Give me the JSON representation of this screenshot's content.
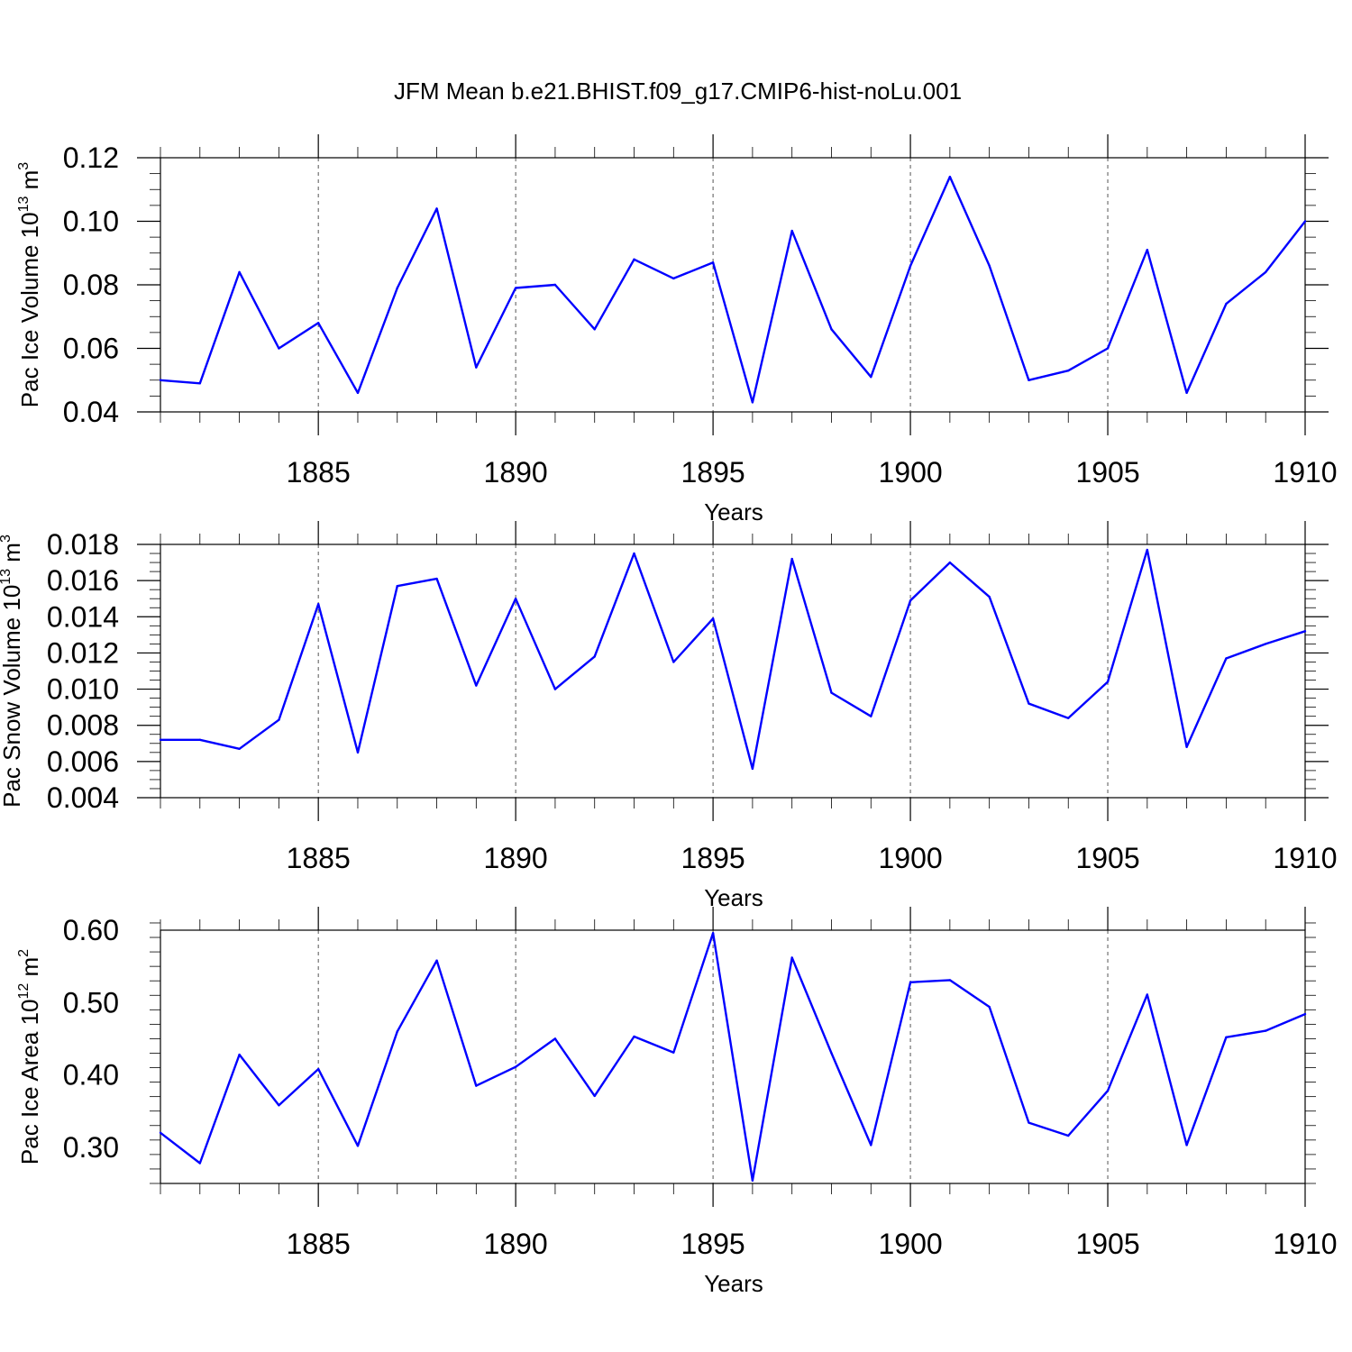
{
  "title": "JFM Mean b.e21.BHIST.f09_g17.CMIP6-hist-noLu.001",
  "colors": {
    "line": "#0000ff",
    "axis": "#000000",
    "grid": "#555555",
    "background": "#ffffff"
  },
  "chart_data": [
    {
      "type": "line",
      "title": "JFM Mean b.e21.BHIST.f09_g17.CMIP6-hist-noLu.001",
      "xlabel": "Years",
      "ylabel": {
        "text": "Pac Ice Volume 10",
        "exponent": "13",
        "unit": " m",
        "unit_exponent": "3"
      },
      "xlim": [
        1881,
        1910
      ],
      "ylim": [
        0.04,
        0.12
      ],
      "x_major_ticks": [
        1885,
        1890,
        1895,
        1900,
        1905,
        1910
      ],
      "y_major_ticks": [
        0.04,
        0.06,
        0.08,
        0.1,
        0.12
      ],
      "y_tick_labels": [
        "0.04",
        "0.06",
        "0.08",
        "0.10",
        "0.12"
      ],
      "y_minor_step": 0.005,
      "grid": "vertical-dashed",
      "series": [
        {
          "name": "Pac Ice Volume",
          "x": [
            1881,
            1882,
            1883,
            1884,
            1885,
            1886,
            1887,
            1888,
            1889,
            1890,
            1891,
            1892,
            1893,
            1894,
            1895,
            1896,
            1897,
            1898,
            1899,
            1900,
            1901,
            1902,
            1903,
            1904,
            1905,
            1906,
            1907,
            1908,
            1909,
            1910
          ],
          "values": [
            0.05,
            0.049,
            0.084,
            0.06,
            0.068,
            0.046,
            0.079,
            0.104,
            0.054,
            0.079,
            0.08,
            0.066,
            0.088,
            0.082,
            0.087,
            0.043,
            0.097,
            0.066,
            0.051,
            0.086,
            0.114,
            0.086,
            0.05,
            0.053,
            0.06,
            0.091,
            0.046,
            0.074,
            0.084,
            0.1
          ]
        }
      ]
    },
    {
      "type": "line",
      "xlabel": "Years",
      "ylabel": {
        "text": "Pac Snow Volume 10",
        "exponent": "13",
        "unit": " m",
        "unit_exponent": "3"
      },
      "xlim": [
        1881,
        1910
      ],
      "ylim": [
        0.004,
        0.018
      ],
      "x_major_ticks": [
        1885,
        1890,
        1895,
        1900,
        1905,
        1910
      ],
      "y_major_ticks": [
        0.004,
        0.006,
        0.008,
        0.01,
        0.012,
        0.014,
        0.016,
        0.018
      ],
      "y_tick_labels": [
        "0.004",
        "0.006",
        "0.008",
        "0.010",
        "0.012",
        "0.014",
        "0.016",
        "0.018"
      ],
      "y_minor_step": 0.0005,
      "grid": "vertical-dashed",
      "series": [
        {
          "name": "Pac Snow Volume",
          "x": [
            1881,
            1882,
            1883,
            1884,
            1885,
            1886,
            1887,
            1888,
            1889,
            1890,
            1891,
            1892,
            1893,
            1894,
            1895,
            1896,
            1897,
            1898,
            1899,
            1900,
            1901,
            1902,
            1903,
            1904,
            1905,
            1906,
            1907,
            1908,
            1909,
            1910
          ],
          "values": [
            0.0072,
            0.0072,
            0.0067,
            0.0083,
            0.0147,
            0.0065,
            0.0157,
            0.0161,
            0.0102,
            0.015,
            0.01,
            0.0118,
            0.0175,
            0.0115,
            0.0139,
            0.0056,
            0.0172,
            0.0098,
            0.0085,
            0.0149,
            0.017,
            0.0151,
            0.0092,
            0.0084,
            0.0104,
            0.0177,
            0.0068,
            0.0117,
            0.0125,
            0.0132
          ]
        }
      ]
    },
    {
      "type": "line",
      "xlabel": "Years",
      "ylabel": {
        "text": "Pac Ice Area 10",
        "exponent": "12",
        "unit": " m",
        "unit_exponent": "2"
      },
      "xlim": [
        1881,
        1910
      ],
      "ylim": [
        0.25,
        0.6
      ],
      "x_major_ticks": [
        1885,
        1890,
        1895,
        1900,
        1905,
        1910
      ],
      "y_major_ticks": [
        0.3,
        0.4,
        0.5,
        0.6
      ],
      "y_tick_labels": [
        "0.30",
        "0.40",
        "0.50",
        "0.60"
      ],
      "y_minor_step": 0.02,
      "grid": "vertical-dashed",
      "series": [
        {
          "name": "Pac Ice Area",
          "x": [
            1881,
            1882,
            1883,
            1884,
            1885,
            1886,
            1887,
            1888,
            1889,
            1890,
            1891,
            1892,
            1893,
            1894,
            1895,
            1896,
            1897,
            1898,
            1899,
            1900,
            1901,
            1902,
            1903,
            1904,
            1905,
            1906,
            1907,
            1908,
            1909,
            1910
          ],
          "values": [
            0.32,
            0.278,
            0.428,
            0.358,
            0.408,
            0.302,
            0.46,
            0.558,
            0.385,
            0.411,
            0.45,
            0.371,
            0.453,
            0.431,
            0.596,
            0.254,
            0.562,
            0.43,
            0.303,
            0.528,
            0.531,
            0.494,
            0.334,
            0.316,
            0.378,
            0.511,
            0.303,
            0.452,
            0.461,
            0.484
          ]
        }
      ]
    }
  ]
}
